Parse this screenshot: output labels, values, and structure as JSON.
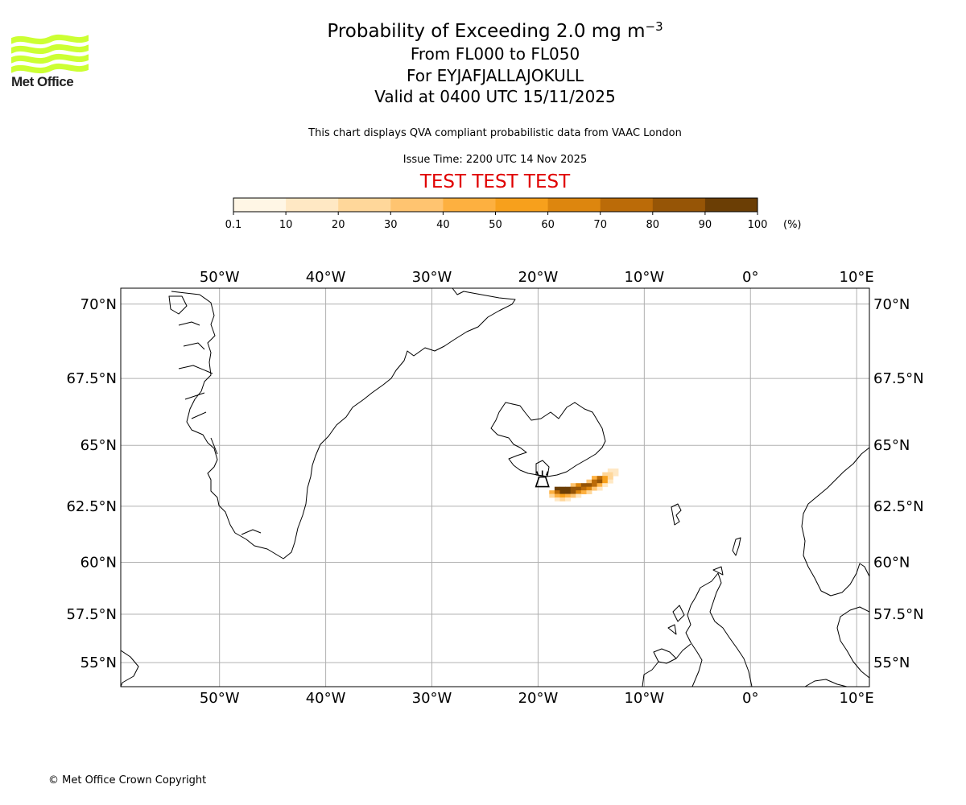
{
  "logo": {
    "text": "Met Office",
    "color": "#ccff33"
  },
  "title": {
    "main_prefix": "Probability of Exceeding 2.0 mg m",
    "main_exponent": "−3",
    "levels": "From FL000 to FL050",
    "volcano": "For EYJAFJALLAJOKULL",
    "valid": "Valid at 0400 UTC 15/11/2025"
  },
  "notes": {
    "qva": "This chart displays QVA compliant probabilistic data from VAAC London",
    "issue": "Issue Time: 2200 UTC 14 Nov 2025"
  },
  "test_banner": "TEST TEST TEST",
  "colorbar": {
    "ticks": [
      "0.1",
      "10",
      "20",
      "30",
      "40",
      "50",
      "60",
      "70",
      "80",
      "90",
      "100"
    ],
    "unit": "(%)",
    "colors": [
      "#fff6e5",
      "#ffe8c4",
      "#ffd79a",
      "#ffc470",
      "#fdb040",
      "#f7a01c",
      "#dd860e",
      "#bb6b08",
      "#965506",
      "#6b3e05"
    ]
  },
  "map": {
    "lon_range": [
      -59.3,
      11.2
    ],
    "lat_range": [
      53.7,
      70.5
    ],
    "lon_ticks": [
      -50,
      -40,
      -30,
      -20,
      -10,
      0,
      10
    ],
    "lon_labels": [
      "50°W",
      "40°W",
      "30°W",
      "20°W",
      "10°W",
      "0°",
      "10°E"
    ],
    "lat_ticks": [
      70,
      67.5,
      65,
      62.5,
      60,
      57.5,
      55
    ],
    "lat_labels": [
      "70°N",
      "67.5°N",
      "65°N",
      "62.5°N",
      "60°N",
      "57.5°N",
      "55°N"
    ],
    "volcano_marker": {
      "lon": -19.6,
      "lat": 63.63
    },
    "ash_cells": [
      [
        -13.2,
        64.0,
        1
      ],
      [
        -12.7,
        64.0,
        1
      ],
      [
        -13.7,
        63.85,
        2
      ],
      [
        -13.2,
        63.85,
        2
      ],
      [
        -12.7,
        63.85,
        1
      ],
      [
        -14.7,
        63.7,
        4
      ],
      [
        -14.2,
        63.7,
        7
      ],
      [
        -13.7,
        63.7,
        5
      ],
      [
        -13.2,
        63.7,
        2
      ],
      [
        -15.2,
        63.55,
        3
      ],
      [
        -14.7,
        63.55,
        7
      ],
      [
        -14.2,
        63.55,
        8
      ],
      [
        -13.7,
        63.55,
        5
      ],
      [
        -13.2,
        63.55,
        1
      ],
      [
        -16.7,
        63.4,
        3
      ],
      [
        -16.2,
        63.4,
        6
      ],
      [
        -15.7,
        63.4,
        8
      ],
      [
        -15.2,
        63.4,
        8
      ],
      [
        -14.7,
        63.4,
        7
      ],
      [
        -14.2,
        63.4,
        4
      ],
      [
        -13.7,
        63.4,
        1
      ],
      [
        -18.2,
        63.25,
        9
      ],
      [
        -17.7,
        63.25,
        9
      ],
      [
        -17.2,
        63.25,
        9
      ],
      [
        -16.7,
        63.25,
        8
      ],
      [
        -16.2,
        63.25,
        8
      ],
      [
        -15.7,
        63.25,
        7
      ],
      [
        -15.2,
        63.25,
        6
      ],
      [
        -14.7,
        63.25,
        3
      ],
      [
        -14.2,
        63.25,
        1
      ],
      [
        -18.7,
        63.1,
        4
      ],
      [
        -18.2,
        63.1,
        7
      ],
      [
        -17.7,
        63.1,
        9
      ],
      [
        -17.2,
        63.1,
        9
      ],
      [
        -16.7,
        63.1,
        8
      ],
      [
        -16.2,
        63.1,
        6
      ],
      [
        -15.7,
        63.1,
        4
      ],
      [
        -15.2,
        63.1,
        2
      ],
      [
        -18.7,
        62.95,
        2
      ],
      [
        -18.2,
        62.95,
        4
      ],
      [
        -17.7,
        62.95,
        5
      ],
      [
        -17.2,
        62.95,
        4
      ],
      [
        -16.7,
        62.95,
        3
      ],
      [
        -16.2,
        62.95,
        1
      ],
      [
        -18.2,
        62.8,
        1
      ],
      [
        -17.7,
        62.8,
        2
      ],
      [
        -17.2,
        62.8,
        1
      ]
    ]
  },
  "copyright": "© Met Office Crown Copyright"
}
